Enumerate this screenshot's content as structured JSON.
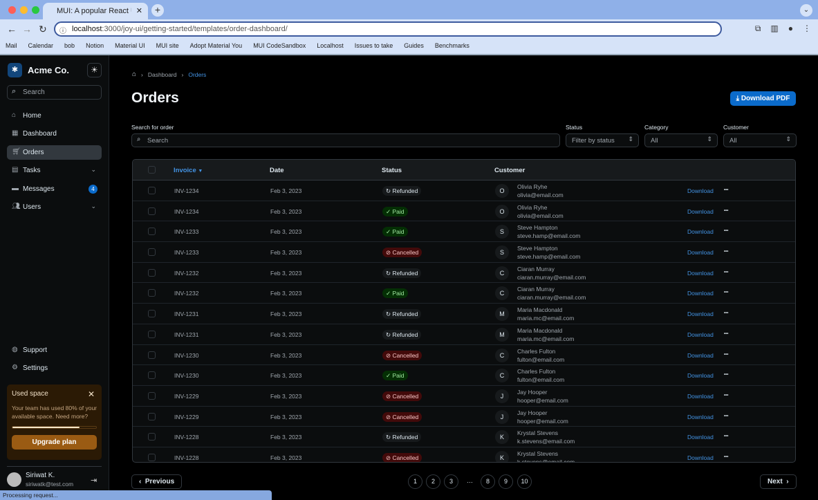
{
  "browser": {
    "tab_title": "MUI: A popular React UI fram",
    "url_host": "localhost",
    "url_path": ":3000/joy-ui/getting-started/templates/order-dashboard/",
    "bookmarks": [
      "Mail",
      "Calendar",
      "bob",
      "Notion",
      "Material UI",
      "MUI site",
      "Adopt Material You",
      "MUI CodeSandbox",
      "Localhost",
      "Issues to take",
      "Guides",
      "Benchmarks"
    ],
    "status": "Processing request..."
  },
  "sidebar": {
    "brand": "Acme Co.",
    "search_placeholder": "Search",
    "items": [
      {
        "label": "Home",
        "icon": "home-icon"
      },
      {
        "label": "Dashboard",
        "icon": "dashboard-icon"
      },
      {
        "label": "Orders",
        "icon": "cart-icon",
        "active": true
      },
      {
        "label": "Tasks",
        "icon": "tasks-icon"
      },
      {
        "label": "Messages",
        "icon": "messages-icon",
        "badge": "4"
      },
      {
        "label": "Users",
        "icon": "users-icon"
      }
    ],
    "support": "Support",
    "settings": "Settings",
    "card": {
      "title": "Used space",
      "text": "Your team has used 80% of your available space. Need more?",
      "progress": 80,
      "button": "Upgrade plan"
    },
    "user": {
      "name": "Siriwat K.",
      "email": "siriwatk@test.com"
    }
  },
  "main": {
    "breadcrumb": [
      "Dashboard",
      "Orders"
    ],
    "title": "Orders",
    "download_pdf": "Download PDF",
    "filters": {
      "search_label": "Search for order",
      "search_placeholder": "Search",
      "status_label": "Status",
      "status_placeholder": "Filter by status",
      "category_label": "Category",
      "category_value": "All",
      "customer_label": "Customer",
      "customer_value": "All"
    },
    "columns": [
      "Invoice",
      "Date",
      "Status",
      "Customer"
    ],
    "download_label": "Download",
    "rows": [
      {
        "invoice": "INV-1234",
        "date": "Feb 3, 2023",
        "status": "Refunded",
        "initial": "O",
        "name": "Olivia Ryhe",
        "email": "olivia@email.com"
      },
      {
        "invoice": "INV-1234",
        "date": "Feb 3, 2023",
        "status": "Paid",
        "initial": "O",
        "name": "Olivia Ryhe",
        "email": "olivia@email.com"
      },
      {
        "invoice": "INV-1233",
        "date": "Feb 3, 2023",
        "status": "Paid",
        "initial": "S",
        "name": "Steve Hampton",
        "email": "steve.hamp@email.com"
      },
      {
        "invoice": "INV-1233",
        "date": "Feb 3, 2023",
        "status": "Cancelled",
        "initial": "S",
        "name": "Steve Hampton",
        "email": "steve.hamp@email.com"
      },
      {
        "invoice": "INV-1232",
        "date": "Feb 3, 2023",
        "status": "Refunded",
        "initial": "C",
        "name": "Ciaran Murray",
        "email": "ciaran.murray@email.com"
      },
      {
        "invoice": "INV-1232",
        "date": "Feb 3, 2023",
        "status": "Paid",
        "initial": "C",
        "name": "Ciaran Murray",
        "email": "ciaran.murray@email.com"
      },
      {
        "invoice": "INV-1231",
        "date": "Feb 3, 2023",
        "status": "Refunded",
        "initial": "M",
        "name": "Maria Macdonald",
        "email": "maria.mc@email.com"
      },
      {
        "invoice": "INV-1231",
        "date": "Feb 3, 2023",
        "status": "Refunded",
        "initial": "M",
        "name": "Maria Macdonald",
        "email": "maria.mc@email.com"
      },
      {
        "invoice": "INV-1230",
        "date": "Feb 3, 2023",
        "status": "Cancelled",
        "initial": "C",
        "name": "Charles Fulton",
        "email": "fulton@email.com"
      },
      {
        "invoice": "INV-1230",
        "date": "Feb 3, 2023",
        "status": "Paid",
        "initial": "C",
        "name": "Charles Fulton",
        "email": "fulton@email.com"
      },
      {
        "invoice": "INV-1229",
        "date": "Feb 3, 2023",
        "status": "Cancelled",
        "initial": "J",
        "name": "Jay Hooper",
        "email": "hooper@email.com"
      },
      {
        "invoice": "INV-1229",
        "date": "Feb 3, 2023",
        "status": "Cancelled",
        "initial": "J",
        "name": "Jay Hooper",
        "email": "hooper@email.com"
      },
      {
        "invoice": "INV-1228",
        "date": "Feb 3, 2023",
        "status": "Refunded",
        "initial": "K",
        "name": "Krystal Stevens",
        "email": "k.stevens@email.com"
      },
      {
        "invoice": "INV-1228",
        "date": "Feb 3, 2023",
        "status": "Cancelled",
        "initial": "K",
        "name": "Krystal Stevens",
        "email": "k.stevens@email.com"
      }
    ],
    "pagination": {
      "previous": "Previous",
      "next": "Next",
      "pages": [
        "1",
        "2",
        "3",
        "…",
        "8",
        "9",
        "10"
      ]
    }
  }
}
